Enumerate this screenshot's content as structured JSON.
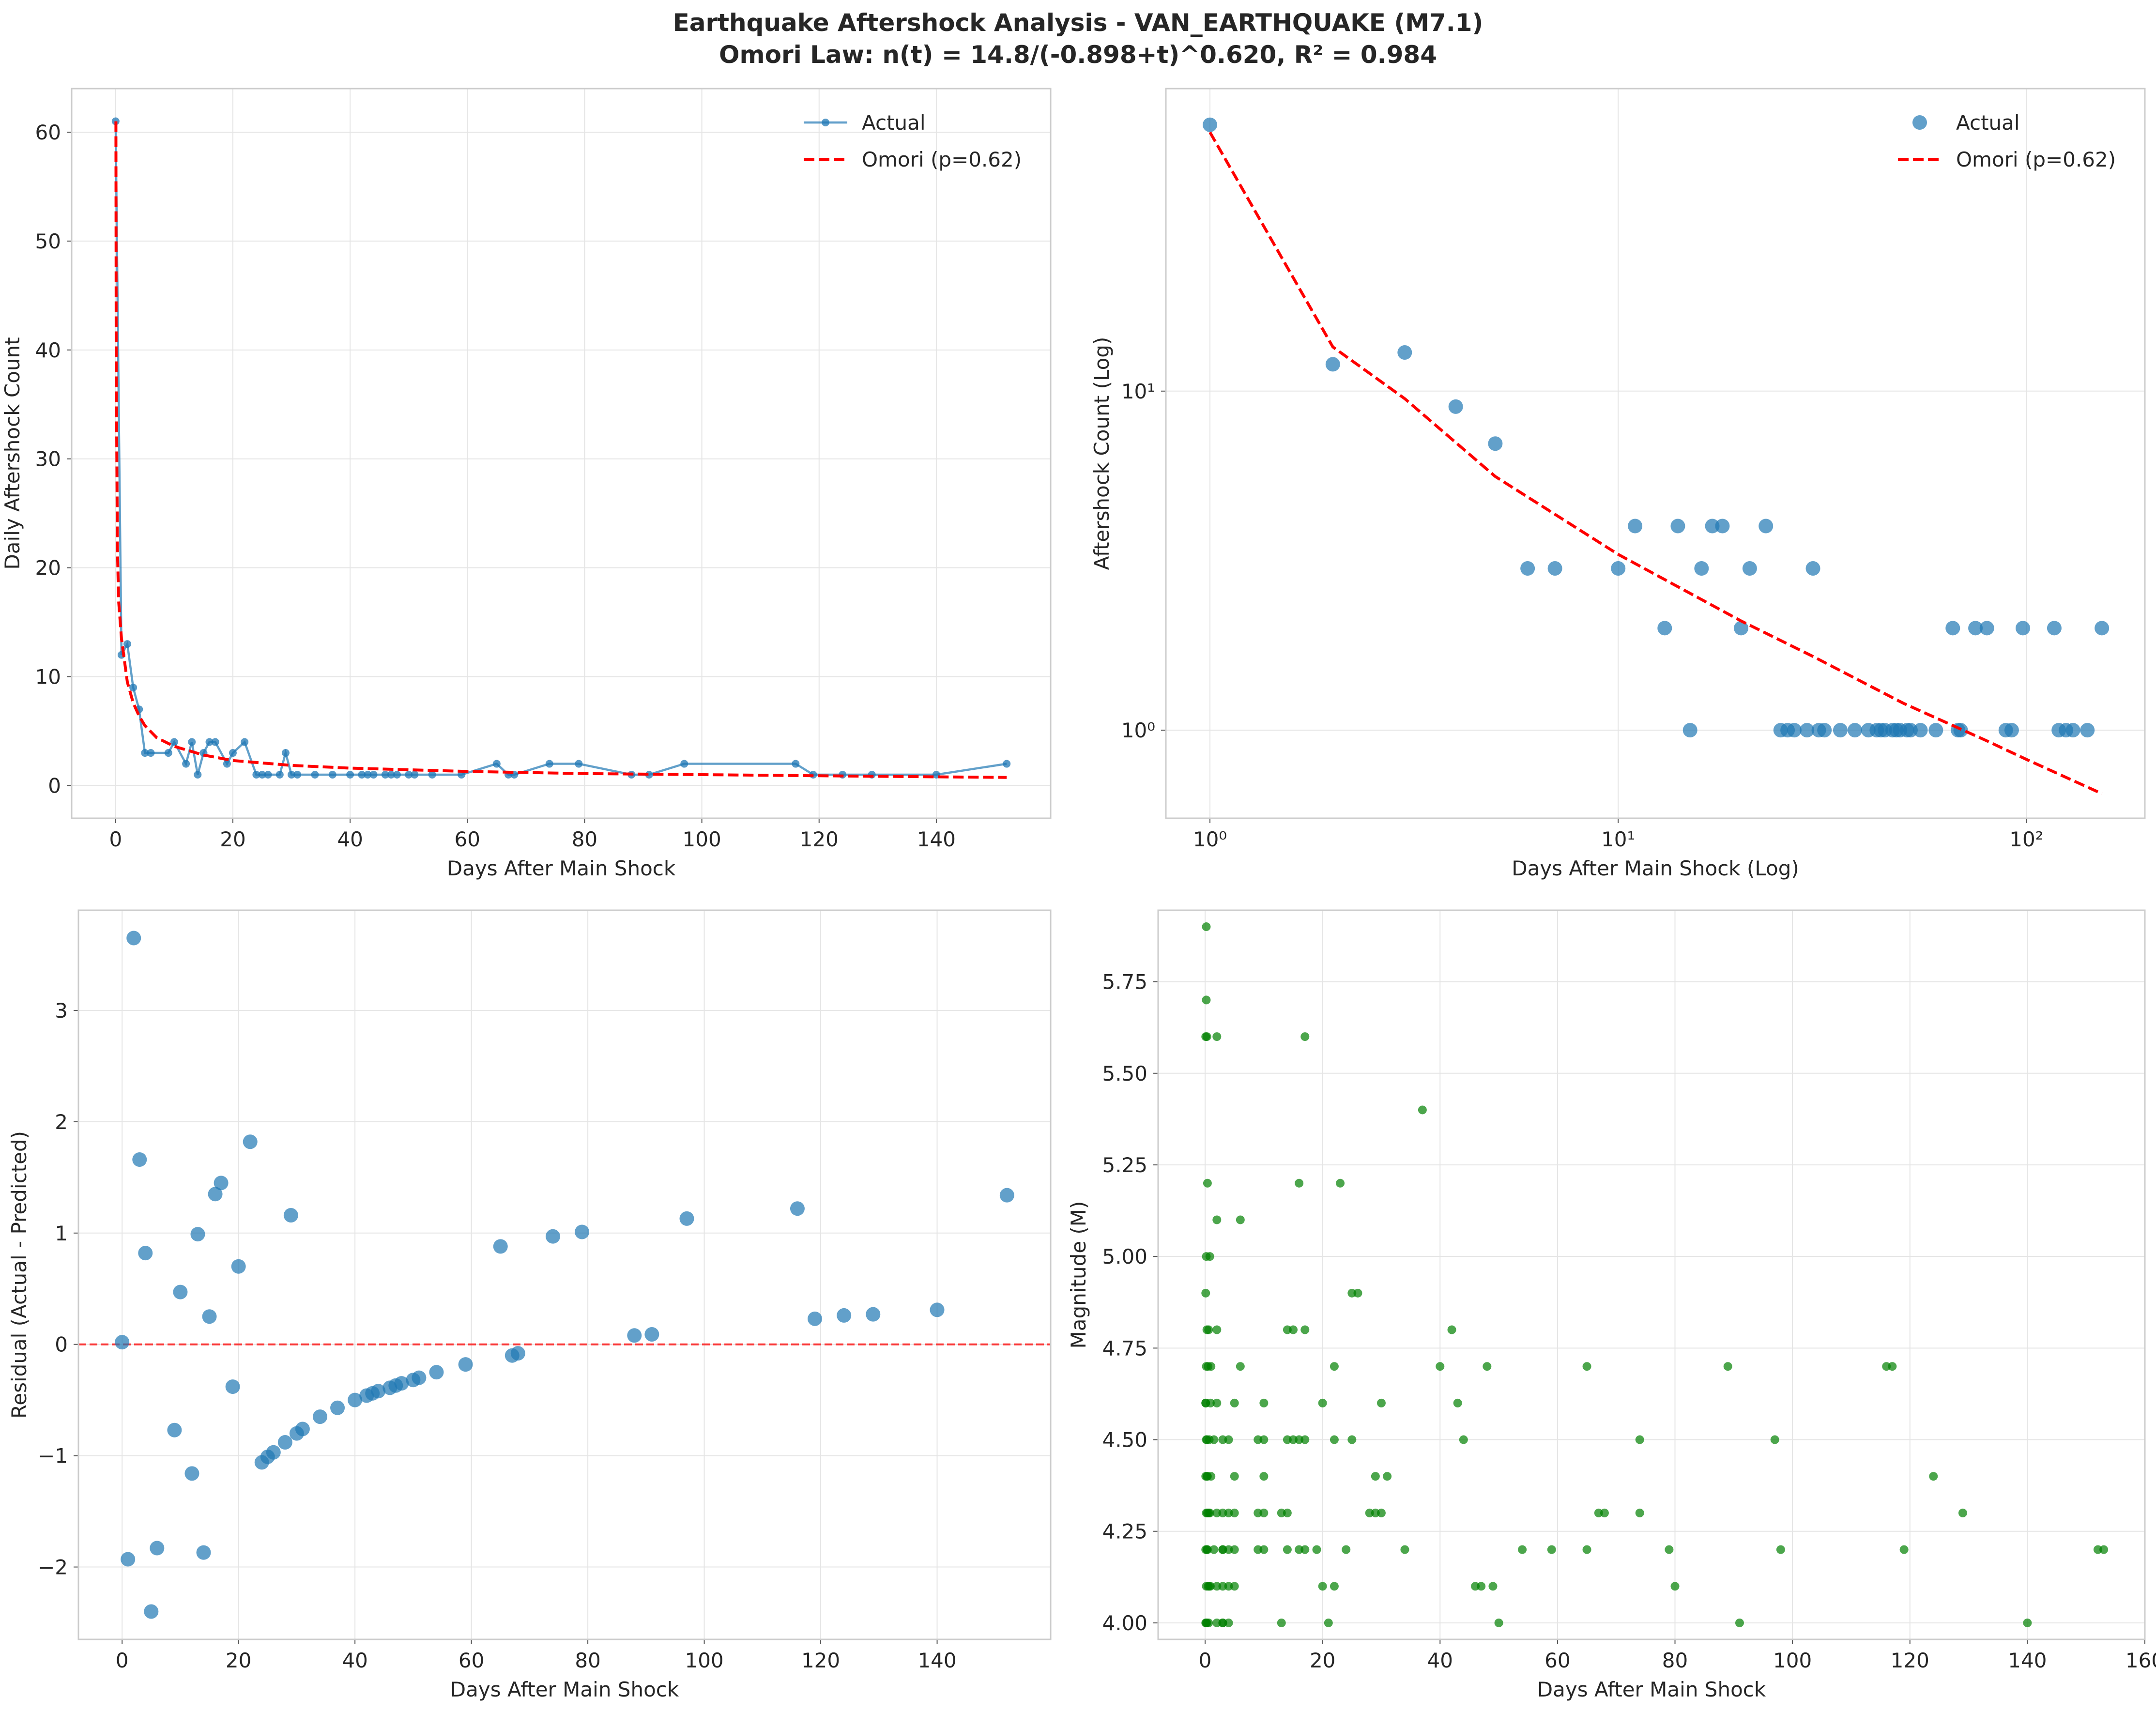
{
  "title": "Earthquake Aftershock Analysis - VAN_EARTHQUAKE (M7.1)",
  "subtitle": "Omori Law: n(t) = 14.8/(-0.898+t)^0.620, R² = 0.984",
  "colors": {
    "actual": "#1f77b4",
    "omori": "#ff0000",
    "magnitude": "#008000",
    "grid": "#e5e5e5",
    "spine": "#cccccc"
  },
  "chart_data": [
    {
      "type": "line",
      "xlabel": "Days After Main Shock",
      "ylabel": "Daily Aftershock Count",
      "xlim": [
        -7.5,
        159.5
      ],
      "ylim": [
        -3,
        64
      ],
      "xticks": [
        0,
        20,
        40,
        60,
        80,
        100,
        120,
        140
      ],
      "yticks": [
        0,
        10,
        20,
        30,
        40,
        50,
        60
      ],
      "grid": true,
      "legend": "top-right",
      "series": [
        {
          "name": "Actual",
          "style": "line-marker",
          "x": [
            0,
            1,
            2,
            3,
            4,
            5,
            6,
            9,
            10,
            12,
            13,
            14,
            15,
            16,
            17,
            19,
            20,
            22,
            24,
            25,
            26,
            28,
            29,
            30,
            31,
            34,
            37,
            40,
            42,
            43,
            44,
            46,
            47,
            48,
            50,
            51,
            54,
            59,
            65,
            67,
            68,
            74,
            79,
            88,
            91,
            97,
            116,
            119,
            124,
            129,
            140,
            152
          ],
          "y": [
            61,
            12,
            13,
            9,
            7,
            3,
            3,
            3,
            4,
            2,
            4,
            1,
            3,
            4,
            4,
            2,
            3,
            4,
            1,
            1,
            1,
            1,
            3,
            1,
            1,
            1,
            1,
            1,
            1,
            1,
            1,
            1,
            1,
            1,
            1,
            1,
            1,
            1,
            2,
            1,
            1,
            2,
            2,
            1,
            1,
            2,
            2,
            1,
            1,
            1,
            1,
            2
          ]
        },
        {
          "name": "Omori (p=0.62)",
          "style": "dashed",
          "x": [
            0.05,
            0.1,
            0.3,
            0.5,
            1,
            2,
            3,
            4,
            5,
            7,
            10,
            15,
            20,
            30,
            40,
            60,
            80,
            100,
            120,
            140,
            152
          ],
          "y": [
            61,
            40,
            22,
            17,
            13.5,
            9.5,
            7.6,
            6.4,
            5.5,
            4.4,
            3.6,
            2.8,
            2.3,
            1.85,
            1.6,
            1.3,
            1.1,
            1.0,
            0.9,
            0.8,
            0.75
          ]
        }
      ]
    },
    {
      "type": "scatter",
      "xlabel": "Days After Main Shock (Log)",
      "ylabel": "Aftershock Count (Log)",
      "xscale": "log",
      "yscale": "log",
      "xlim": [
        0.78,
        195
      ],
      "ylim": [
        0.55,
        78
      ],
      "xticks": [
        "10⁰",
        "10¹",
        "10²"
      ],
      "yticks": [
        "10⁰",
        "10¹"
      ],
      "grid": true,
      "legend": "top-right",
      "series": [
        {
          "name": "Actual",
          "style": "marker",
          "x": [
            1,
            2,
            3,
            4,
            5,
            6,
            7,
            10,
            11,
            13,
            14,
            15,
            16,
            17,
            18,
            20,
            21,
            23,
            25,
            26,
            27,
            29,
            30,
            31,
            32,
            35,
            38,
            41,
            43,
            44,
            45,
            47,
            48,
            49,
            51,
            52,
            55,
            60,
            66,
            68,
            69,
            75,
            80,
            89,
            92,
            98,
            117,
            120,
            125,
            130,
            141,
            153
          ],
          "y": [
            61,
            12,
            13,
            9,
            7,
            3,
            3,
            3,
            4,
            2,
            4,
            1,
            3,
            4,
            4,
            2,
            3,
            4,
            1,
            1,
            1,
            1,
            3,
            1,
            1,
            1,
            1,
            1,
            1,
            1,
            1,
            1,
            1,
            1,
            1,
            1,
            1,
            1,
            2,
            1,
            1,
            2,
            2,
            1,
            1,
            2,
            2,
            1,
            1,
            1,
            1,
            2
          ]
        },
        {
          "name": "Omori (p=0.62)",
          "style": "dashed",
          "x": [
            1,
            2,
            3,
            5,
            10,
            20,
            30,
            50,
            80,
            100,
            153
          ],
          "y": [
            58,
            13.5,
            9.5,
            5.6,
            3.3,
            2.1,
            1.65,
            1.2,
            0.93,
            0.82,
            0.65
          ]
        }
      ]
    },
    {
      "type": "scatter",
      "xlabel": "Days After Main Shock",
      "ylabel": "Residual (Actual - Predicted)",
      "xlim": [
        -7.5,
        159.5
      ],
      "ylim": [
        -2.65,
        3.9
      ],
      "xticks": [
        0,
        20,
        40,
        60,
        80,
        100,
        120,
        140
      ],
      "yticks": [
        "−2",
        "−1",
        "0",
        "1",
        "2",
        "3"
      ],
      "ytick_values": [
        -2,
        -1,
        0,
        1,
        2,
        3
      ],
      "grid": true,
      "reference_line": 0,
      "series": [
        {
          "name": "",
          "style": "marker",
          "x": [
            0,
            1,
            2,
            3,
            4,
            5,
            6,
            9,
            10,
            12,
            13,
            14,
            15,
            16,
            17,
            19,
            20,
            22,
            24,
            25,
            26,
            28,
            29,
            30,
            31,
            34,
            37,
            40,
            42,
            43,
            44,
            46,
            47,
            48,
            50,
            51,
            54,
            59,
            65,
            67,
            68,
            74,
            79,
            88,
            91,
            97,
            116,
            119,
            124,
            129,
            140,
            152
          ],
          "y": [
            0.02,
            -1.93,
            3.65,
            1.66,
            0.82,
            -2.4,
            -1.83,
            -0.77,
            0.47,
            -1.16,
            0.99,
            -1.87,
            0.25,
            1.35,
            1.45,
            -0.38,
            0.7,
            1.82,
            -1.06,
            -1.01,
            -0.97,
            -0.88,
            1.16,
            -0.8,
            -0.76,
            -0.65,
            -0.57,
            -0.5,
            -0.46,
            -0.44,
            -0.42,
            -0.39,
            -0.37,
            -0.35,
            -0.32,
            -0.3,
            -0.25,
            -0.18,
            0.88,
            -0.1,
            -0.08,
            0.97,
            1.01,
            0.08,
            0.09,
            1.13,
            1.22,
            0.23,
            0.26,
            0.27,
            0.31,
            1.34
          ]
        }
      ]
    },
    {
      "type": "scatter",
      "xlabel": "Days After Main Shock",
      "ylabel": "Magnitude (M)",
      "xlim": [
        -8,
        160
      ],
      "ylim": [
        3.955,
        5.945
      ],
      "xticks": [
        0,
        20,
        40,
        60,
        80,
        100,
        120,
        140,
        160
      ],
      "yticks": [
        "4.00",
        "4.25",
        "4.50",
        "4.75",
        "5.00",
        "5.25",
        "5.50",
        "5.75"
      ],
      "ytick_values": [
        4.0,
        4.25,
        4.5,
        4.75,
        5.0,
        5.25,
        5.5,
        5.75
      ],
      "grid": true,
      "series": [
        {
          "name": "",
          "style": "small-marker",
          "x": [
            0.2,
            0.2,
            0.1,
            0.3,
            0.4,
            0.8,
            0.2,
            0.1,
            0.6,
            0.3,
            0.2,
            0.5,
            0.9,
            0.1,
            0.3,
            0.2,
            0.7,
            0.4,
            0.1,
            0.3,
            0.6,
            0.2,
            0.8,
            0.1,
            0.4,
            0.3,
            0.5,
            0.2,
            0.9,
            0.1,
            0.2,
            0.6,
            0.3,
            0.4,
            0.1,
            0.7,
            1,
            1,
            1.5,
            1.5,
            2,
            2,
            2,
            2,
            2,
            2,
            2,
            3,
            3,
            3,
            3,
            3,
            3,
            3,
            4,
            4,
            4,
            4,
            4,
            5,
            5,
            5,
            5,
            5,
            6,
            6,
            9,
            9,
            9,
            10,
            10,
            10,
            10,
            10,
            13,
            13,
            14,
            14,
            14,
            14,
            15,
            15,
            16,
            16,
            16,
            17,
            17,
            17,
            17,
            19,
            20,
            20,
            21,
            22,
            22,
            22,
            23,
            24,
            25,
            25,
            26,
            28,
            29,
            29,
            30,
            30,
            31,
            34,
            37,
            40,
            42,
            43,
            44,
            46,
            47,
            48,
            49,
            50,
            54,
            59,
            65,
            65,
            67,
            68,
            74,
            74,
            79,
            80,
            89,
            91,
            97,
            98,
            116,
            117,
            119,
            124,
            129,
            140,
            152,
            153
          ],
          "y": [
            5.9,
            5.7,
            5.6,
            5.6,
            5.2,
            5.0,
            5.0,
            4.9,
            4.8,
            4.8,
            4.7,
            4.7,
            4.6,
            4.6,
            4.5,
            4.5,
            4.5,
            4.4,
            4.4,
            4.4,
            4.3,
            4.3,
            4.3,
            4.2,
            4.2,
            4.2,
            4.1,
            4.1,
            4.1,
            4.0,
            4.0,
            4.0,
            4.0,
            4.3,
            4.6,
            4.1,
            4.4,
            4.7,
            4.5,
            4.2,
            5.6,
            5.1,
            4.8,
            4.6,
            4.3,
            4.1,
            4.0,
            4.5,
            4.3,
            4.2,
            4.1,
            4.0,
            4.2,
            4.0,
            4.5,
            4.3,
            4.2,
            4.0,
            4.1,
            4.6,
            4.4,
            4.3,
            4.2,
            4.1,
            4.7,
            5.1,
            4.5,
            4.3,
            4.2,
            4.6,
            4.5,
            4.4,
            4.3,
            4.2,
            4.3,
            4.0,
            4.8,
            4.5,
            4.3,
            4.2,
            4.8,
            4.5,
            5.2,
            4.5,
            4.2,
            5.6,
            4.8,
            4.5,
            4.2,
            4.2,
            4.1,
            4.6,
            4.0,
            4.1,
            4.7,
            4.5,
            5.2,
            4.2,
            4.9,
            4.5,
            4.9,
            4.3,
            4.3,
            4.4,
            4.6,
            4.3,
            4.4,
            4.2,
            5.4,
            4.7,
            4.8,
            4.6,
            4.5,
            4.1,
            4.1,
            4.7,
            4.1,
            4.0,
            4.2,
            4.2,
            4.7,
            4.2,
            4.3,
            4.3,
            4.5,
            4.3,
            4.2,
            4.1,
            4.7,
            4.0,
            4.5,
            4.2,
            4.7,
            4.7,
            4.2,
            4.4,
            4.3,
            4.0,
            4.2,
            4.2
          ]
        }
      ]
    }
  ]
}
